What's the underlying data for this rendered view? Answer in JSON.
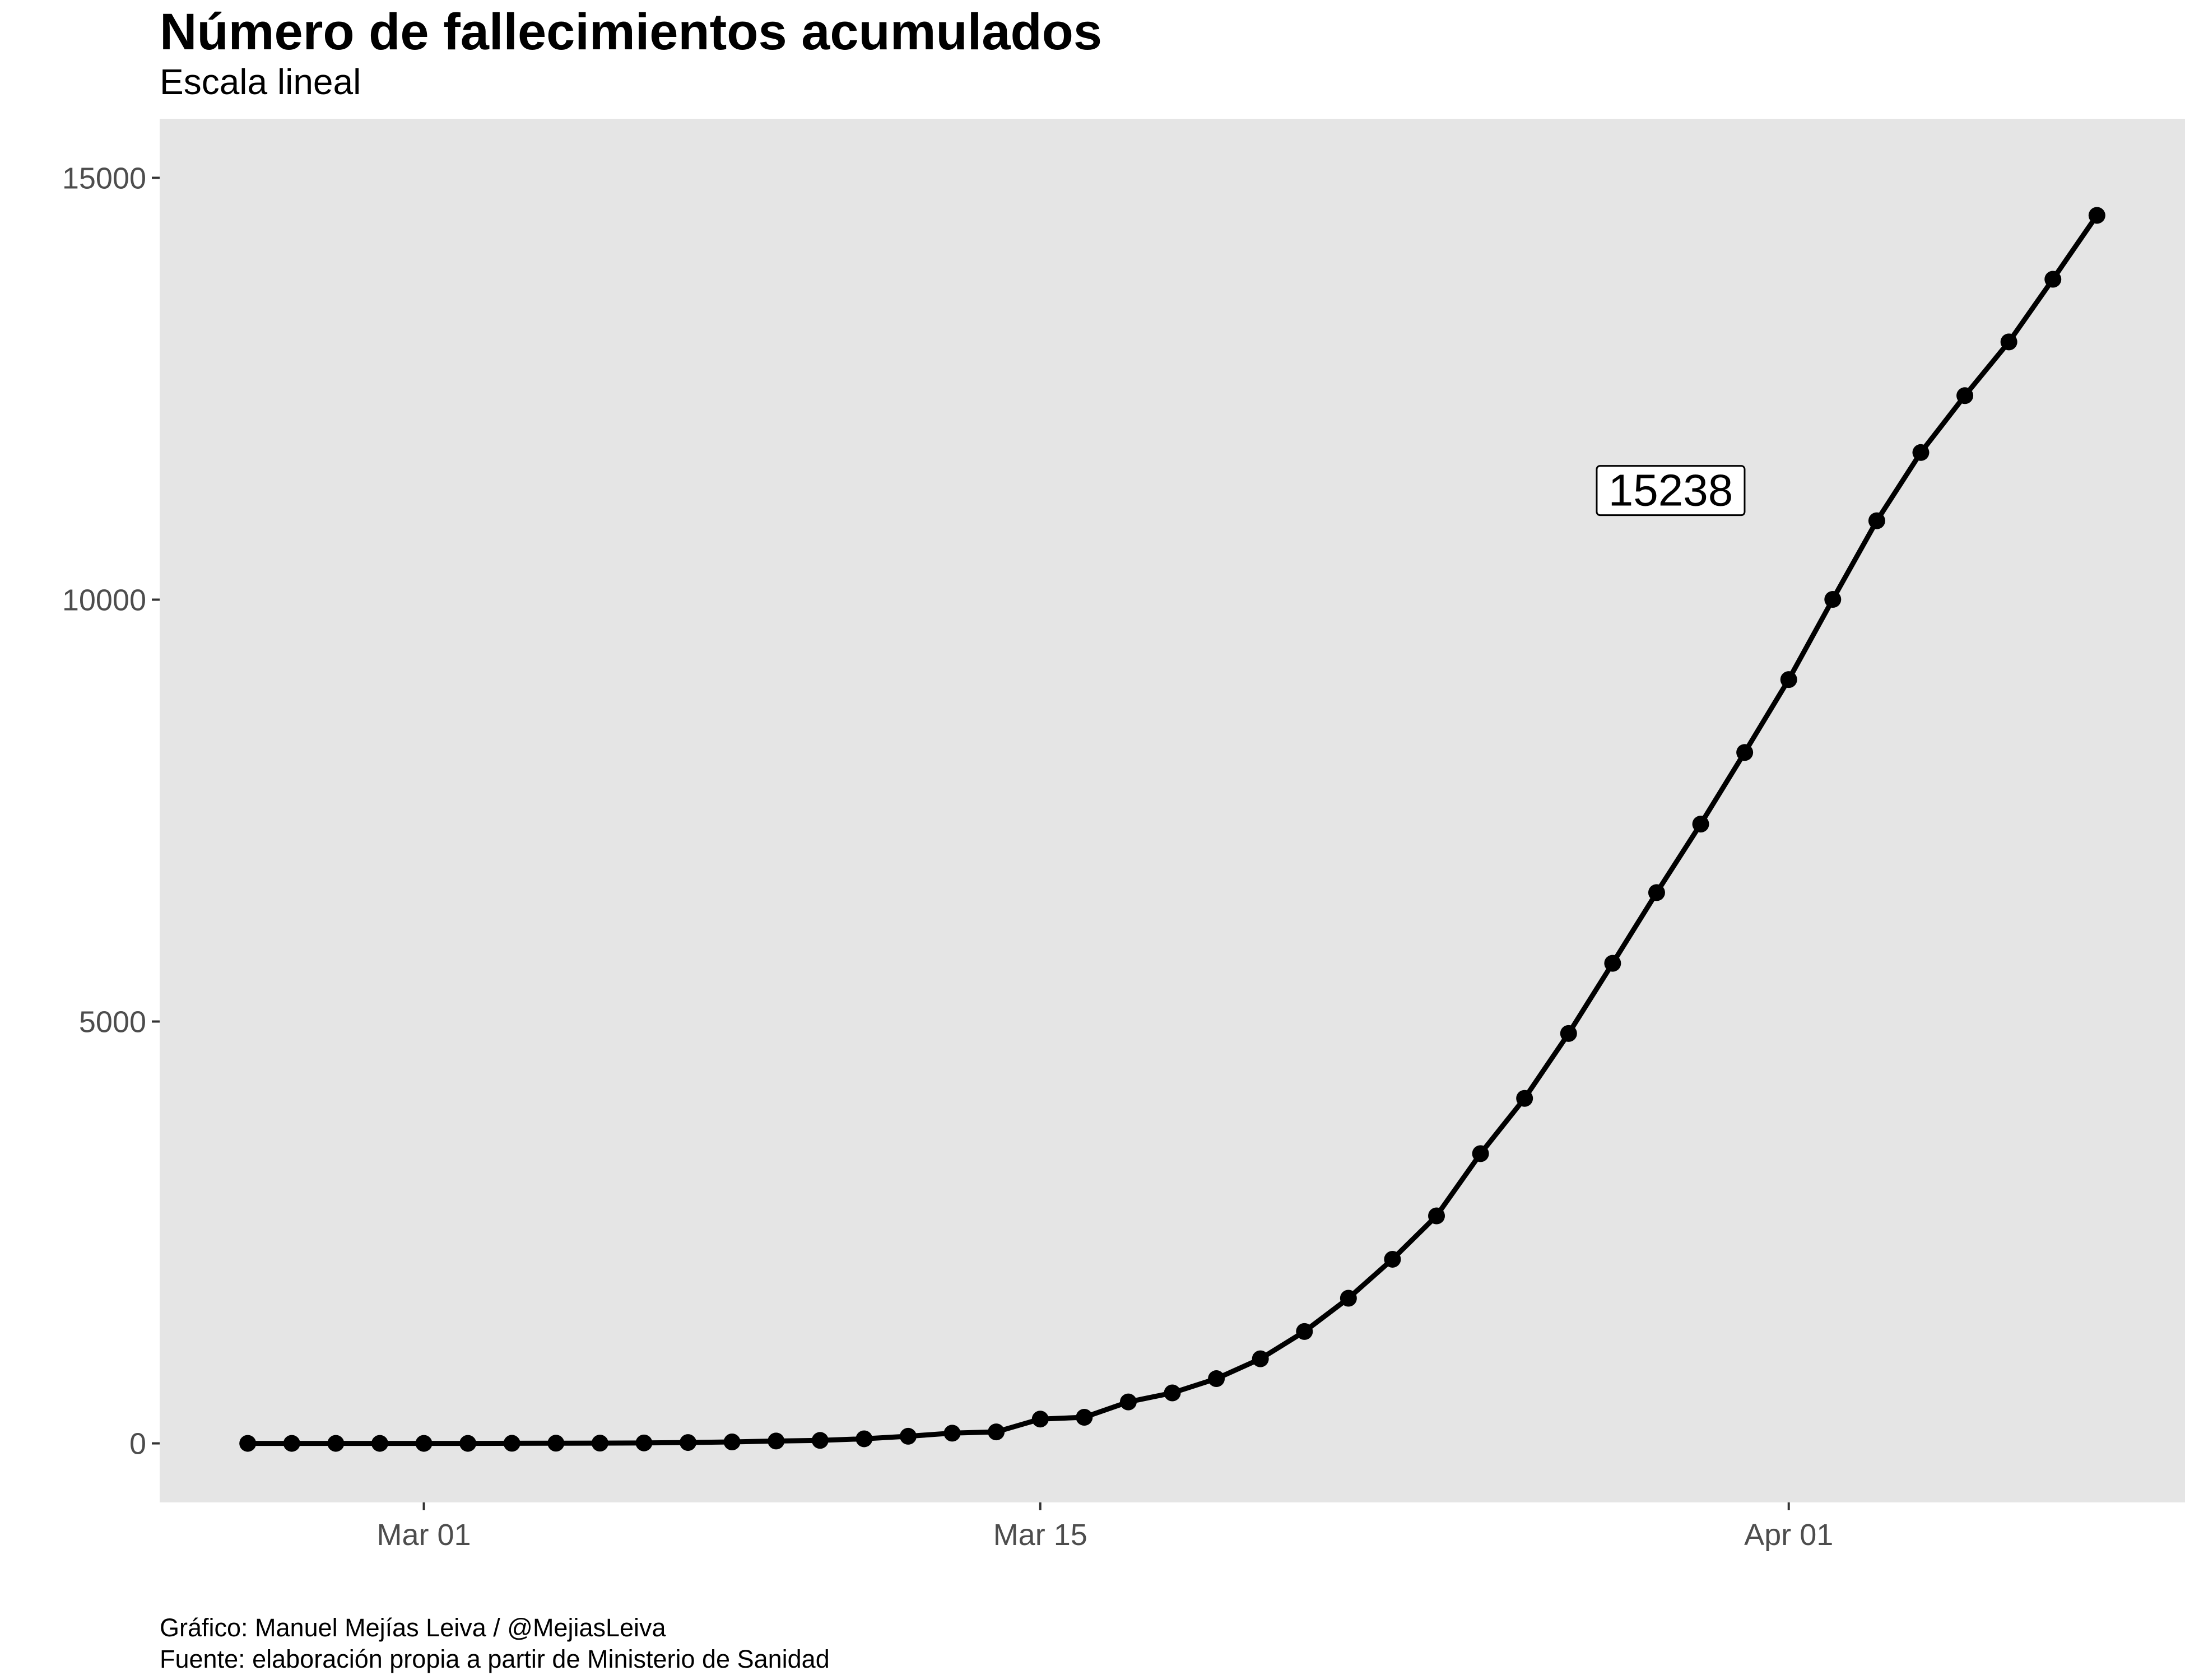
{
  "colors": {
    "panel": "#e5e5e5",
    "line": "#000000",
    "axis_text": "#4d4d4d"
  },
  "chart_data": {
    "type": "line",
    "title": "Número de fallecimientos acumulados",
    "subtitle": "Escala lineal",
    "xlabel": "",
    "ylabel": "",
    "x_tick_labels": [
      "Mar 01",
      "Mar 15",
      "Apr 01"
    ],
    "y_ticks": [
      0,
      5000,
      10000,
      15000
    ],
    "ylim": [
      -700,
      15700
    ],
    "xlim": [
      "2020-02-24",
      "2020-04-10"
    ],
    "grid": false,
    "series": [
      {
        "x": [
          "2020-02-26",
          "2020-02-27",
          "2020-02-28",
          "2020-02-29",
          "2020-03-01",
          "2020-03-02",
          "2020-03-03",
          "2020-03-04",
          "2020-03-05",
          "2020-03-06",
          "2020-03-07",
          "2020-03-08",
          "2020-03-09",
          "2020-03-10",
          "2020-03-11",
          "2020-03-12",
          "2020-03-13",
          "2020-03-14",
          "2020-03-15",
          "2020-03-16",
          "2020-03-17",
          "2020-03-18",
          "2020-03-19",
          "2020-03-20",
          "2020-03-21",
          "2020-03-22",
          "2020-03-23",
          "2020-03-24",
          "2020-03-25",
          "2020-03-26",
          "2020-03-27",
          "2020-03-28",
          "2020-03-29",
          "2020-03-30",
          "2020-03-31",
          "2020-04-01",
          "2020-04-02",
          "2020-04-03",
          "2020-04-04",
          "2020-04-05",
          "2020-04-06",
          "2020-04-07",
          "2020-04-08"
        ],
        "values": [
          0,
          0,
          0,
          0,
          0,
          0,
          1,
          2,
          3,
          5,
          10,
          17,
          28,
          35,
          54,
          84,
          121,
          136,
          288,
          309,
          491,
          598,
          767,
          1002,
          1326,
          1720,
          2182,
          2696,
          3434,
          4089,
          4858,
          5690,
          6528,
          7340,
          8189,
          9053,
          10003,
          10935,
          11744,
          12418,
          13055,
          13798,
          14555
        ]
      }
    ],
    "annotations": [
      {
        "text": "15238",
        "x": "2020-03-29",
        "y": 11300
      }
    ]
  },
  "caption": {
    "line1": "Gráfico: Manuel Mejías Leiva / @MejiasLeiva",
    "line2": "Fuente: elaboración propia a partir de Ministerio de Sanidad"
  }
}
